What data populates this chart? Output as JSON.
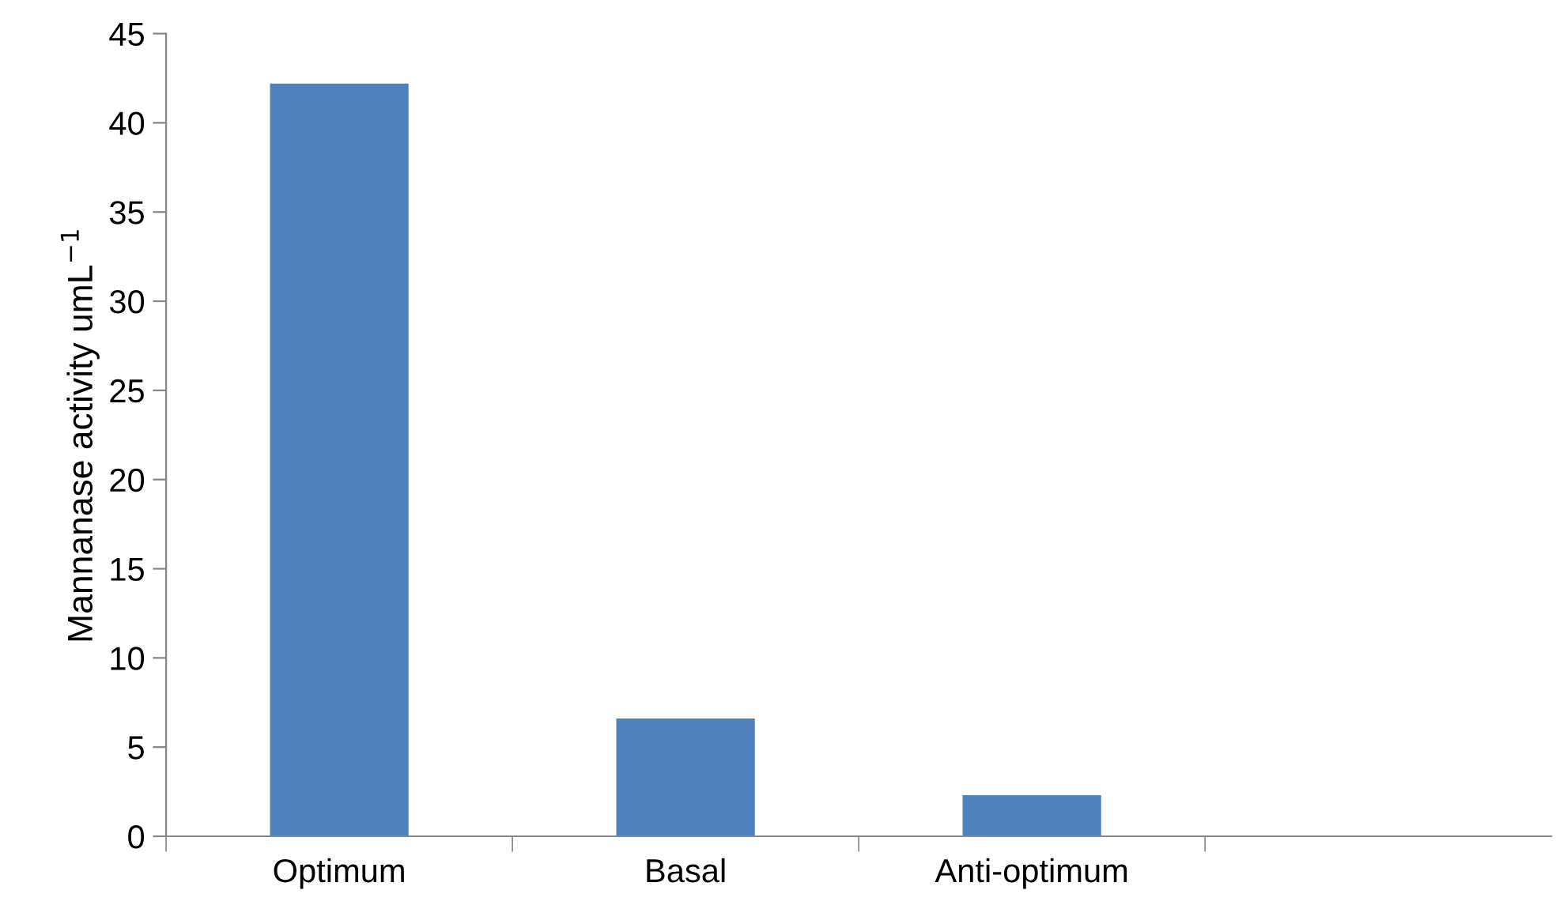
{
  "chart_data": {
    "type": "bar",
    "ylabel": "Mannanase activity umL$^{−1}$",
    "categories": [
      "Optimum",
      "Basal",
      "Anti-optimum",
      null
    ],
    "values": [
      42.2,
      6.6,
      2.3,
      null
    ],
    "color": "#4f81bd",
    "ylim": [
      0,
      45
    ],
    "yticks": [
      0,
      5,
      10,
      15,
      20,
      25,
      30,
      35,
      40,
      45
    ],
    "grid": false,
    "legend": false
  }
}
